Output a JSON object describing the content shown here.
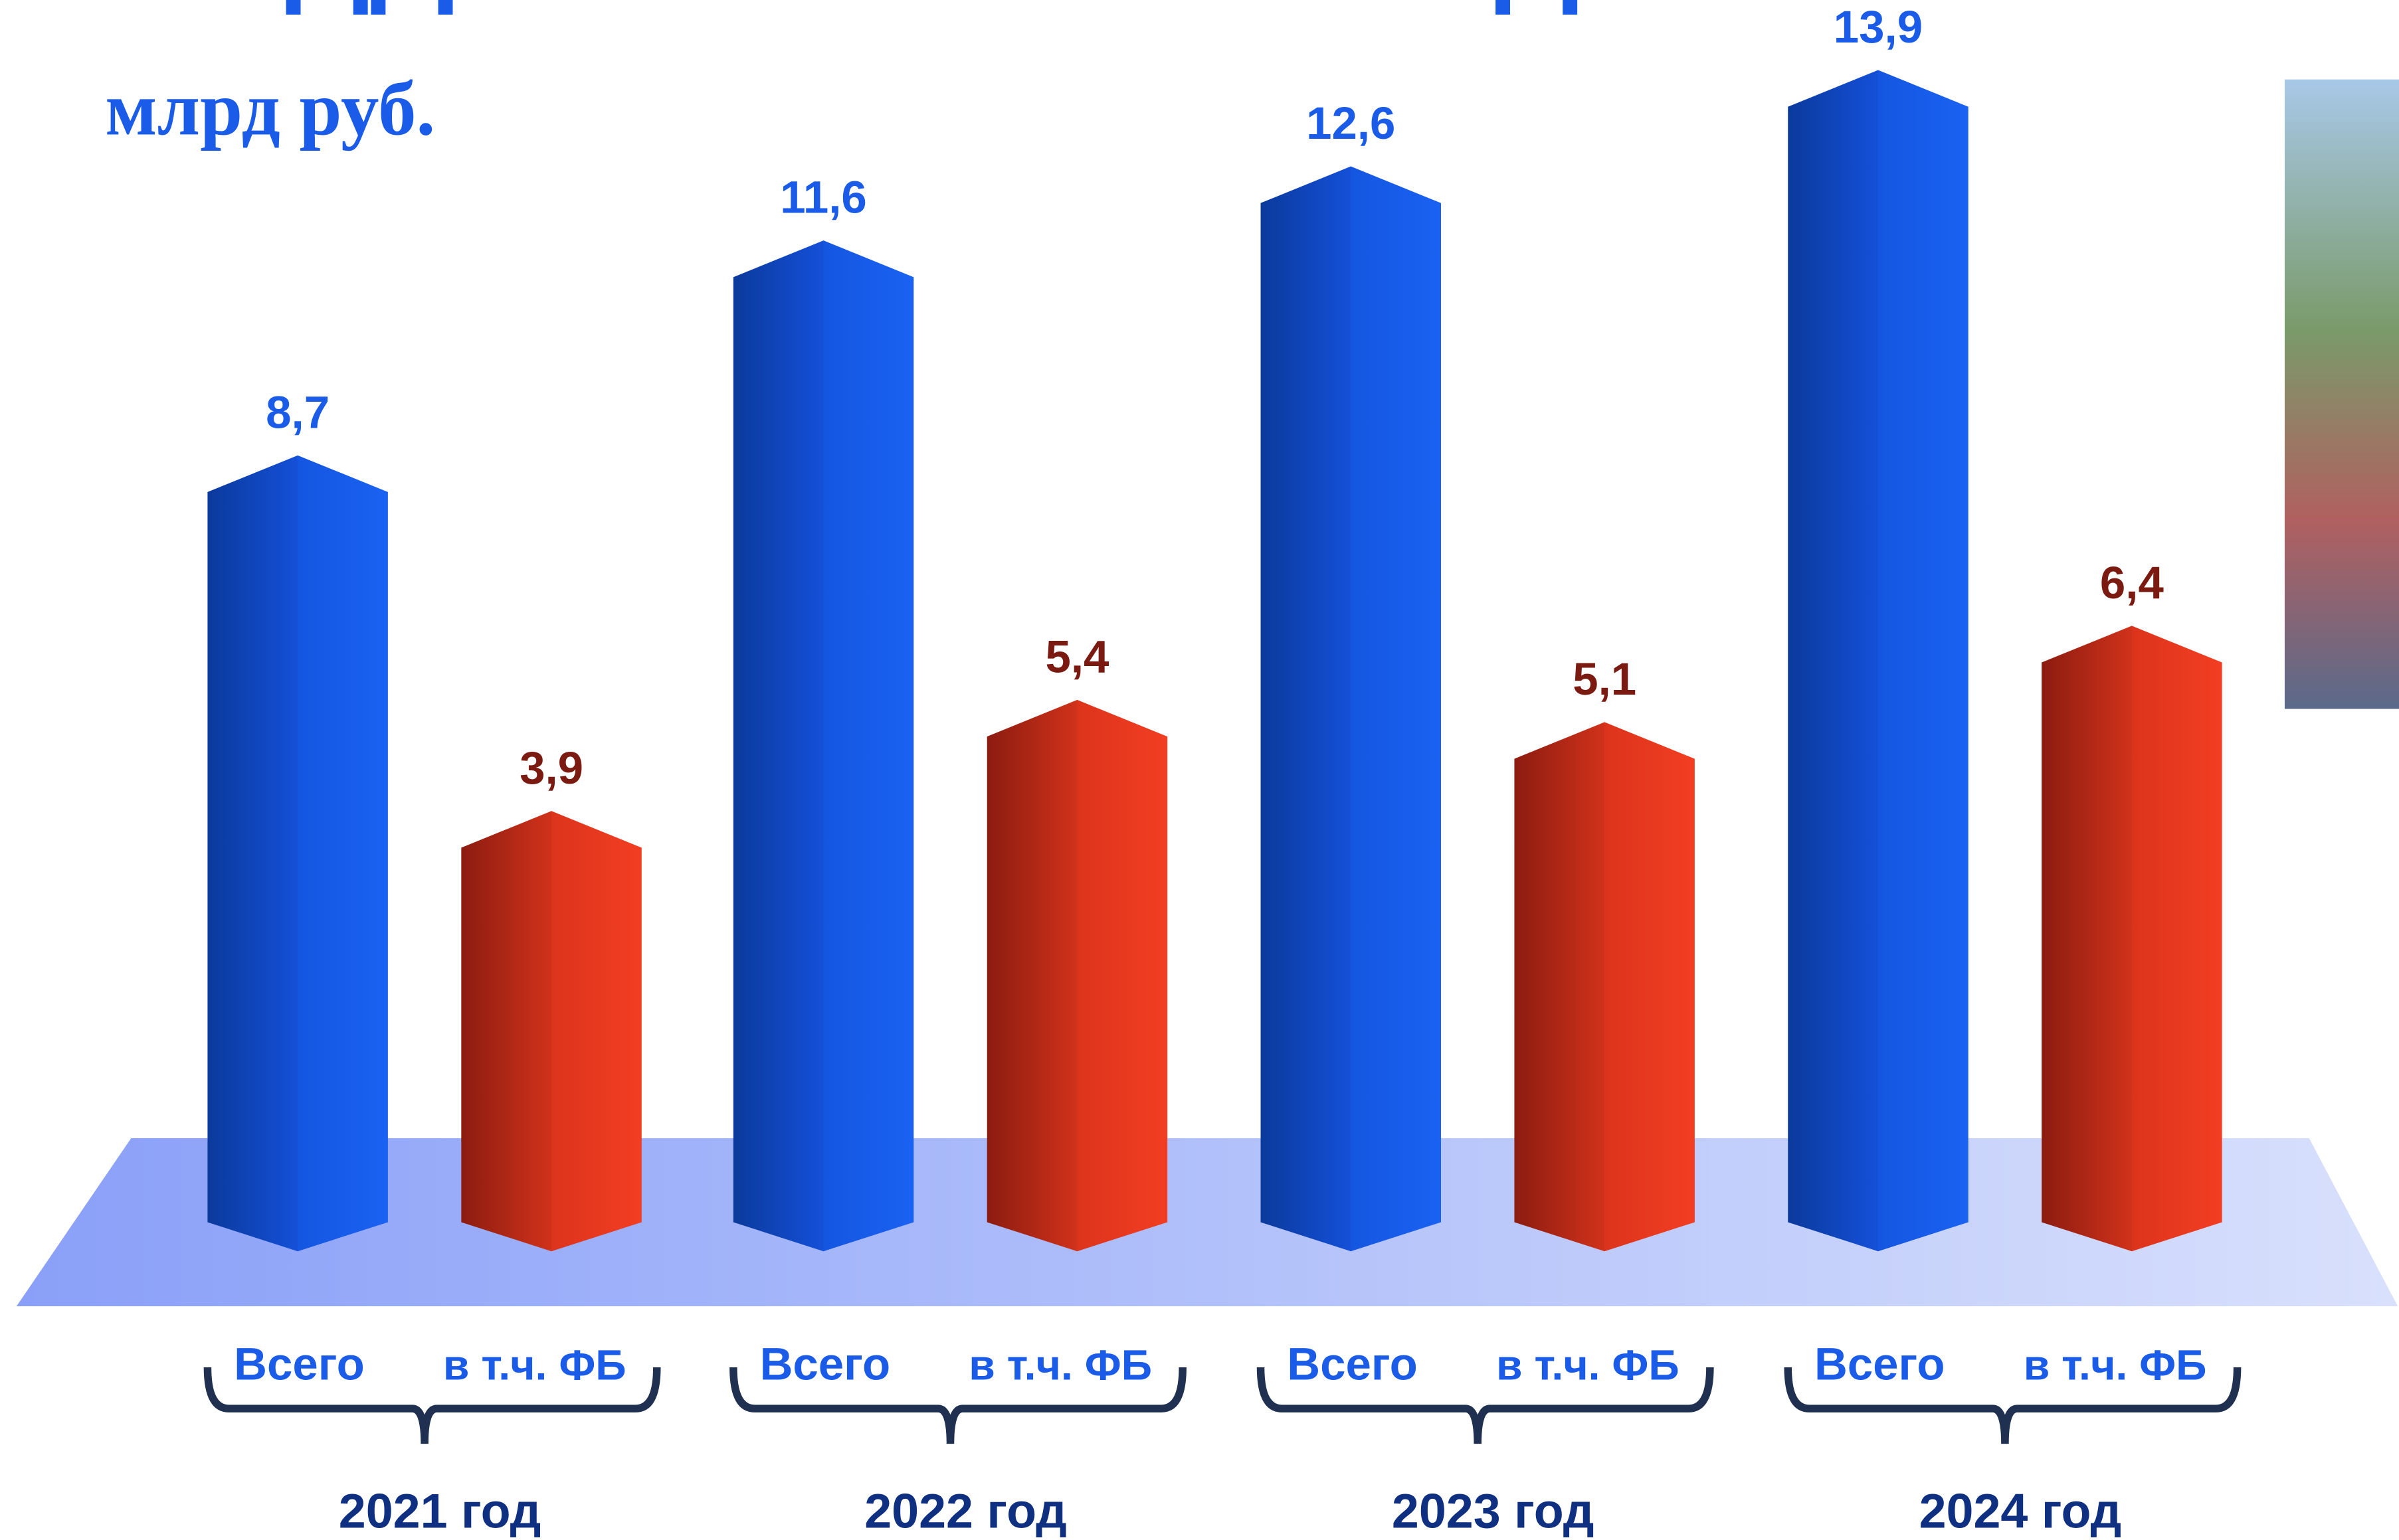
{
  "chart_data": {
    "type": "bar",
    "title": "ПОДДЕРЖКА СЕМЕЙ С ДЕТЬМИ",
    "subtitle": "млрд руб.",
    "categories": [
      "2021 год",
      "2022 год",
      "2023 год",
      "2024 год"
    ],
    "series": [
      {
        "name": "Всего",
        "color": "#1a5ce8",
        "values": [
          8.7,
          11.6,
          12.6,
          13.9
        ],
        "value_labels": [
          "8,7",
          "11,6",
          "12,6",
          "13,9"
        ]
      },
      {
        "name": "в т.ч. ФБ",
        "color": "#e63a1e",
        "values": [
          3.9,
          5.4,
          5.1,
          6.4
        ],
        "value_labels": [
          "3,9",
          "5,4",
          "5,1",
          "6,4"
        ]
      }
    ]
  }
}
